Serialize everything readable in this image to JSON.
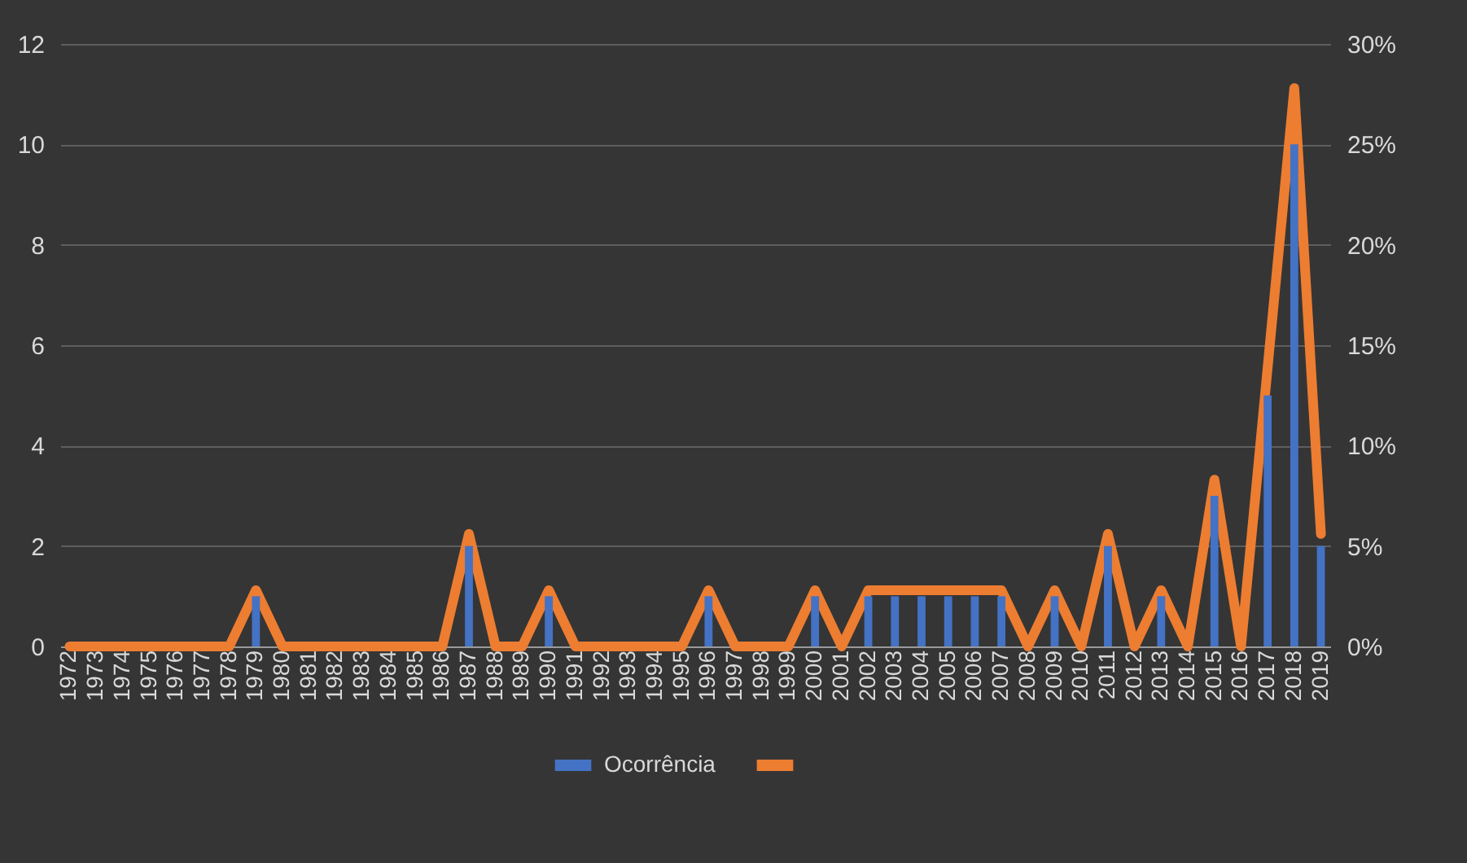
{
  "chart_data": {
    "type": "bar",
    "categories": [
      "1972",
      "1973",
      "1974",
      "1975",
      "1976",
      "1977",
      "1978",
      "1979",
      "1980",
      "1981",
      "1982",
      "1983",
      "1984",
      "1985",
      "1986",
      "1987",
      "1988",
      "1989",
      "1990",
      "1991",
      "1992",
      "1993",
      "1994",
      "1995",
      "1996",
      "1997",
      "1998",
      "1999",
      "2000",
      "2001",
      "2002",
      "2003",
      "2004",
      "2005",
      "2006",
      "2007",
      "2008",
      "2009",
      "2010",
      "2011",
      "2012",
      "2013",
      "2014",
      "2015",
      "2016",
      "2017",
      "2018",
      "2019"
    ],
    "series": [
      {
        "name": "Ocorrência",
        "color": "#4472c4",
        "values": [
          0,
          0,
          0,
          0,
          0,
          0,
          0,
          1,
          0,
          0,
          0,
          0,
          0,
          0,
          0,
          2,
          0,
          0,
          1,
          0,
          0,
          0,
          0,
          0,
          1,
          0,
          0,
          0,
          1,
          0,
          1,
          1,
          1,
          1,
          1,
          1,
          0,
          1,
          0,
          2,
          0,
          1,
          0,
          3,
          0,
          5,
          10,
          2
        ]
      },
      {
        "type": "line",
        "axis": "y2",
        "color": "#ed7d31",
        "values": [
          0,
          0,
          0,
          0,
          0,
          0,
          0,
          2.8,
          0,
          0,
          0,
          0,
          0,
          0,
          0,
          5.6,
          0,
          0,
          2.8,
          0,
          0,
          0,
          0,
          0,
          2.8,
          0,
          0,
          0,
          2.8,
          0,
          2.8,
          2.8,
          2.8,
          2.8,
          2.8,
          2.8,
          0,
          2.8,
          0,
          5.6,
          0,
          2.8,
          0,
          8.3,
          0,
          13.9,
          27.8,
          5.6
        ]
      }
    ],
    "ylim": [
      0,
      12
    ],
    "yticks": [
      0,
      2,
      4,
      6,
      8,
      10,
      12
    ],
    "y2lim": [
      0,
      30
    ],
    "y2ticks": [
      {
        "value": 0,
        "label": "0%"
      },
      {
        "value": 5,
        "label": "5%"
      },
      {
        "value": 10,
        "label": "10%"
      },
      {
        "value": 15,
        "label": "15%"
      },
      {
        "value": 20,
        "label": "20%"
      },
      {
        "value": 25,
        "label": "25%"
      },
      {
        "value": 30,
        "label": "30%"
      }
    ],
    "grid": "y",
    "legend": "bottom",
    "line_style": "solid"
  }
}
